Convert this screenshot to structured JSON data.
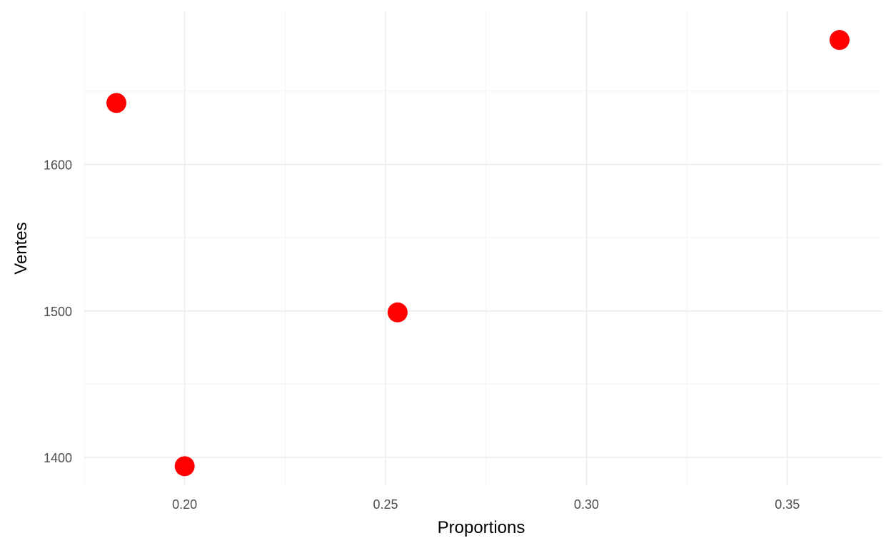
{
  "chart_data": {
    "type": "scatter",
    "title": "",
    "xlabel": "Proportions",
    "ylabel": "Ventes",
    "xlim": [
      0.175,
      0.3735
    ],
    "ylim": [
      1381,
      1705
    ],
    "x_ticks": [
      0.2,
      0.25,
      0.3,
      0.35
    ],
    "x_tick_labels": [
      "0.20",
      "0.25",
      "0.30",
      "0.35"
    ],
    "x_minor_ticks": [
      0.175,
      0.225,
      0.275,
      0.325
    ],
    "y_ticks": [
      1400,
      1500,
      1600
    ],
    "y_tick_labels": [
      "1400",
      "1500",
      "1600"
    ],
    "y_minor_ticks": [
      1450,
      1550,
      1650
    ],
    "grid": true,
    "legend": "none",
    "point_color": "#ff0000",
    "points": [
      {
        "x": 0.183,
        "y": 1642
      },
      {
        "x": 0.2,
        "y": 1394
      },
      {
        "x": 0.253,
        "y": 1499
      },
      {
        "x": 0.363,
        "y": 1685
      }
    ]
  }
}
